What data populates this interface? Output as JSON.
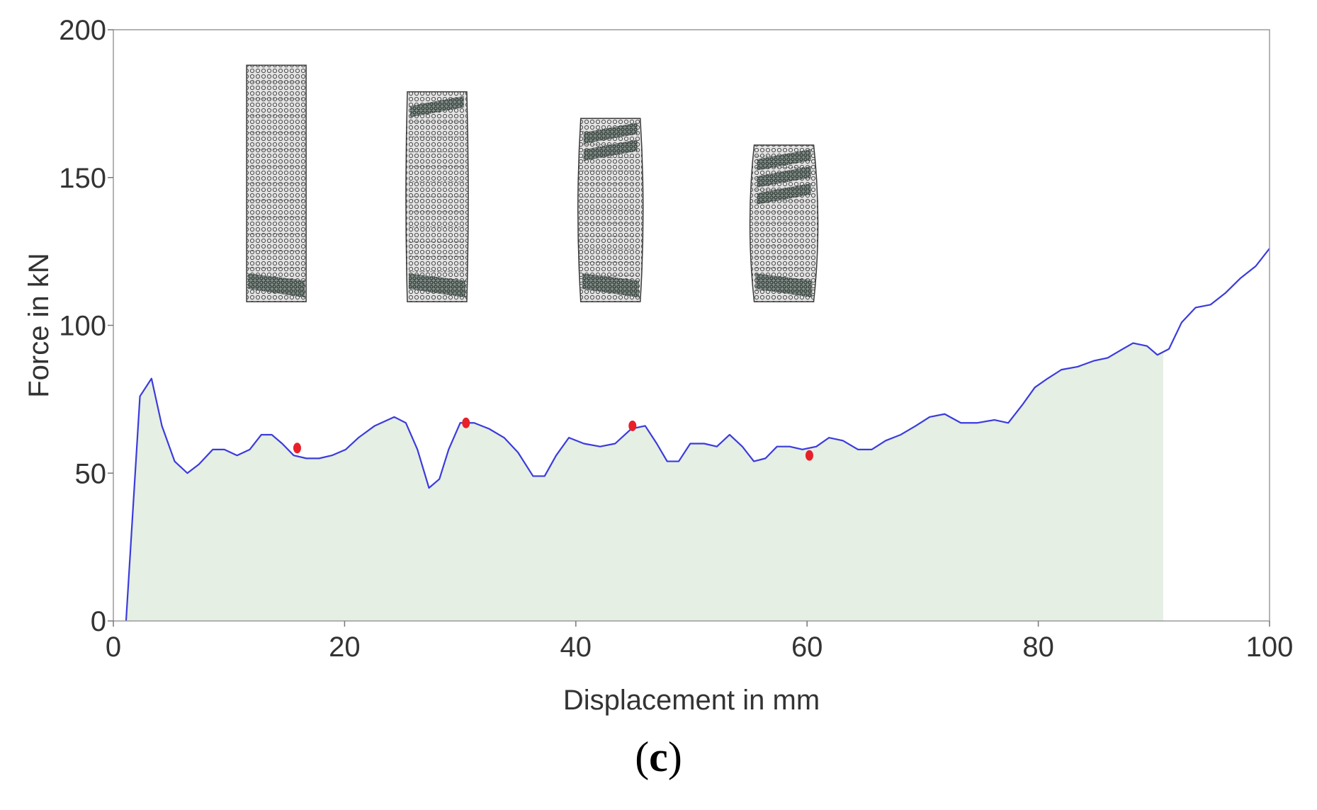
{
  "chart_data": {
    "type": "area",
    "xlabel": "Displacement in mm",
    "ylabel": "Force in kN",
    "xlim": [
      0,
      100
    ],
    "ylim": [
      0,
      200
    ],
    "x_ticks": [
      0,
      20,
      40,
      60,
      80,
      100
    ],
    "y_ticks": [
      0,
      50,
      100,
      150,
      200
    ],
    "grid": false,
    "colors": {
      "line": "#3b3bdc",
      "fill": "#e5efe4",
      "marker": "#e8202a"
    },
    "series": [
      {
        "x": [
          1.1,
          2.3,
          3.3,
          4.2,
          5.3,
          6.4,
          7.4,
          8.6,
          9.6,
          10.7,
          11.8,
          12.8,
          13.7,
          14.6,
          15.6,
          16.7,
          17.8,
          18.9,
          20.1,
          21.2,
          22.6,
          24.3,
          25.3,
          26.3,
          27.3,
          28.2,
          29.0,
          30.0,
          31.2,
          32.5,
          33.8,
          35.0,
          36.3,
          37.3,
          38.3,
          39.4,
          40.7,
          42.1,
          43.4,
          44.8,
          46.0,
          47.0,
          47.9,
          48.9,
          49.9,
          51.1,
          52.2,
          53.3,
          54.4,
          55.4,
          56.4,
          57.4,
          58.5,
          59.6,
          60.8,
          61.9,
          63.1,
          64.4,
          65.6,
          66.8,
          68.1,
          69.4,
          70.6,
          71.9,
          73.3,
          74.7,
          76.2,
          77.4,
          78.6,
          79.7,
          80.8,
          82.0,
          83.4,
          84.8,
          86.0,
          87.3,
          88.2,
          89.4,
          90.3,
          91.3,
          92.4,
          93.6,
          94.9,
          96.2,
          97.5,
          98.8,
          100.0
        ],
        "y": [
          0,
          76,
          82,
          66,
          54,
          50,
          53,
          58,
          58,
          56,
          58,
          63,
          63,
          60,
          56,
          55,
          55,
          56,
          58,
          62,
          66,
          69,
          67,
          58,
          45,
          48,
          58,
          67,
          67,
          65,
          62,
          57,
          49,
          49,
          56,
          62,
          60,
          59,
          60,
          65,
          66,
          60,
          54,
          54,
          60,
          60,
          59,
          63,
          59,
          54,
          55,
          59,
          59,
          58,
          59,
          62,
          61,
          58,
          58,
          61,
          63,
          66,
          69,
          70,
          67,
          67,
          68,
          67,
          73,
          79,
          82,
          85,
          86,
          88,
          89,
          92,
          94,
          93,
          90,
          92,
          101,
          106,
          107,
          111,
          116,
          120,
          126
        ]
      }
    ],
    "fill_end_x": 90.8,
    "highlight_points": [
      {
        "x": 15.9,
        "y": 58.5
      },
      {
        "x": 30.5,
        "y": 67
      },
      {
        "x": 44.9,
        "y": 66
      },
      {
        "x": 60.2,
        "y": 56
      }
    ],
    "inset_images": [
      {
        "x_center": 14.1,
        "y_top": 188,
        "y_bottom": 108,
        "stage": 1
      },
      {
        "x_center": 28.0,
        "y_top": 179,
        "y_bottom": 108,
        "stage": 2
      },
      {
        "x_center": 43.0,
        "y_top": 170,
        "y_bottom": 108,
        "stage": 3
      },
      {
        "x_center": 58.0,
        "y_top": 161,
        "y_bottom": 108,
        "stage": 4
      }
    ]
  },
  "caption": {
    "open": "(",
    "letter": "c",
    "close": ")"
  }
}
